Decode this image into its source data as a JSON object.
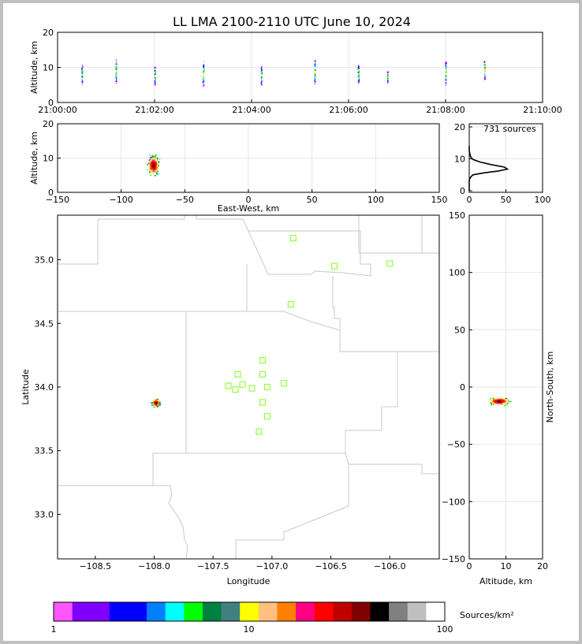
{
  "title": "LL LMA 2100-2110 UTC June 10, 2024",
  "chart_data": [
    {
      "id": "time-altitude",
      "type": "scatter",
      "ylabel": "Altitude, km",
      "ylim": [
        0,
        20
      ],
      "yticks": [
        "0",
        "10",
        "20"
      ],
      "xticks": [
        "21:00:00",
        "21:02:00",
        "21:04:00",
        "21:06:00",
        "21:08:00",
        "21:10:00"
      ],
      "xlim_minutes": [
        0,
        10
      ],
      "grid": true,
      "bursts": [
        {
          "t": 0.5,
          "zmin": 5.0,
          "zmax": 11.0
        },
        {
          "t": 1.2,
          "zmin": 5.5,
          "zmax": 12.5
        },
        {
          "t": 2.0,
          "zmin": 4.8,
          "zmax": 10.5
        },
        {
          "t": 3.0,
          "zmin": 4.5,
          "zmax": 12.0
        },
        {
          "t": 4.2,
          "zmin": 5.0,
          "zmax": 10.5
        },
        {
          "t": 5.3,
          "zmin": 5.0,
          "zmax": 12.5
        },
        {
          "t": 6.2,
          "zmin": 5.5,
          "zmax": 11.0
        },
        {
          "t": 6.8,
          "zmin": 5.5,
          "zmax": 9.0
        },
        {
          "t": 8.0,
          "zmin": 5.0,
          "zmax": 12.0
        },
        {
          "t": 8.8,
          "zmin": 6.5,
          "zmax": 12.5
        }
      ]
    },
    {
      "id": "eastwest-altitude",
      "type": "scatter",
      "xlabel": "East-West, km",
      "ylabel": "Altitude, km",
      "xlim": [
        -150,
        150
      ],
      "ylim": [
        0,
        20
      ],
      "xticks": [
        "−150",
        "−100",
        "−50",
        "0",
        "50",
        "100",
        "150"
      ],
      "yticks": [
        "0",
        "10",
        "20"
      ],
      "cluster": {
        "x_center": -75,
        "x_spread": 4,
        "z_center": 8,
        "z_spread": 2.5
      }
    },
    {
      "id": "altitude-histogram",
      "type": "line",
      "annotation": "731 sources",
      "xlim": [
        0,
        100
      ],
      "ylim": [
        0,
        20
      ],
      "xticks": [
        "0",
        "50",
        "100"
      ],
      "yticks": [
        "0",
        "10",
        "20"
      ],
      "profile": [
        [
          0,
          0
        ],
        [
          0,
          2
        ],
        [
          0,
          3
        ],
        [
          1,
          4
        ],
        [
          5,
          5
        ],
        [
          20,
          5.6
        ],
        [
          40,
          6.2
        ],
        [
          52,
          6.8
        ],
        [
          48,
          7.4
        ],
        [
          30,
          8.2
        ],
        [
          15,
          9.0
        ],
        [
          5,
          9.8
        ],
        [
          2,
          10.6
        ],
        [
          1,
          11.5
        ],
        [
          0,
          12.5
        ],
        [
          0,
          14
        ]
      ]
    },
    {
      "id": "plan-view",
      "type": "scatter",
      "xlabel": "Longitude",
      "ylabel": "Latitude",
      "xlim": [
        -108.82,
        -105.58
      ],
      "ylim": [
        32.65,
        35.35
      ],
      "xticks": [
        "−108.5",
        "−108.0",
        "−107.5",
        "−107.0",
        "−106.5",
        "−106.0"
      ],
      "xtick_values": [
        -108.5,
        -108.0,
        -107.5,
        -107.0,
        -106.5,
        -106.0
      ],
      "yticks": [
        "33.0",
        "33.5",
        "34.0",
        "34.5",
        "35.0"
      ],
      "ytick_values": [
        33.0,
        33.5,
        34.0,
        34.5,
        35.0
      ],
      "stations": [
        [
          -106.82,
          35.17
        ],
        [
          -106.47,
          34.95
        ],
        [
          -106.0,
          34.97
        ],
        [
          -106.84,
          34.65
        ],
        [
          -107.08,
          34.21
        ],
        [
          -107.29,
          34.1
        ],
        [
          -107.08,
          34.1
        ],
        [
          -107.37,
          34.01
        ],
        [
          -107.25,
          34.02
        ],
        [
          -107.31,
          33.98
        ],
        [
          -107.17,
          33.99
        ],
        [
          -107.04,
          34.0
        ],
        [
          -106.9,
          34.03
        ],
        [
          -107.08,
          33.88
        ],
        [
          -107.04,
          33.77
        ],
        [
          -107.11,
          33.65
        ]
      ],
      "cluster": {
        "lon_center": -107.99,
        "lon_spread": 0.03,
        "lat_center": 33.88,
        "lat_spread": 0.03
      }
    },
    {
      "id": "altitude-northsouth",
      "type": "scatter",
      "xlabel": "Altitude, km",
      "ylabel": "North-South, km",
      "xlim": [
        0,
        20
      ],
      "ylim": [
        -150,
        150
      ],
      "xticks": [
        "0",
        "10",
        "20"
      ],
      "yticks": [
        "−150",
        "−100",
        "−50",
        "0",
        "50",
        "100",
        "150"
      ],
      "cluster": {
        "z_center": 8,
        "z_spread": 2.5,
        "y_center": -12,
        "y_spread": 3
      }
    }
  ],
  "colorbar": {
    "label": "Sources/km²",
    "tick_labels": [
      "1",
      "10",
      "100"
    ],
    "colors": [
      "#ff55ff",
      "#8000ff",
      "#8000ff",
      "#0000ff",
      "#0000ff",
      "#0080ff",
      "#00ffff",
      "#00ff00",
      "#008040",
      "#408080",
      "#ffff00",
      "#ffc080",
      "#ff8000",
      "#ff0080",
      "#ff0000",
      "#c00000",
      "#800000",
      "#000000",
      "#808080",
      "#c0c0c0",
      "#ffffff"
    ]
  },
  "palette": {
    "station_color": "#80ff20",
    "boundary_color": "#c8c8c8",
    "grid_color": "#e6e6e6"
  }
}
